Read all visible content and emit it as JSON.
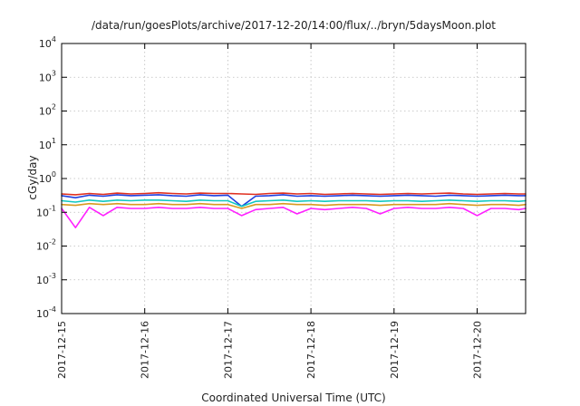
{
  "chart_data": {
    "type": "line",
    "title": "/data/run/goesPlots/archive/2017-12-20/14:00/flux/../bryn/5daysMoon.plot",
    "xlabel": "Coordinated Universal Time (UTC)",
    "ylabel": "cGy/day",
    "yscale": "log",
    "ylim": [
      0.0001,
      10000
    ],
    "xlim": [
      "2017-12-15T00:00",
      "2017-12-20T14:00"
    ],
    "grid": true,
    "legend": "none",
    "y_ticks": [
      {
        "base": "10",
        "exp": "-4",
        "value": 0.0001
      },
      {
        "base": "10",
        "exp": "-3",
        "value": 0.001
      },
      {
        "base": "10",
        "exp": "-2",
        "value": 0.01
      },
      {
        "base": "10",
        "exp": "-1",
        "value": 0.1
      },
      {
        "base": "10",
        "exp": "0",
        "value": 1
      },
      {
        "base": "10",
        "exp": "1",
        "value": 10
      },
      {
        "base": "10",
        "exp": "2",
        "value": 100
      },
      {
        "base": "10",
        "exp": "3",
        "value": 1000
      },
      {
        "base": "10",
        "exp": "4",
        "value": 10000
      }
    ],
    "x_ticks": [
      "2017-12-15",
      "2017-12-16",
      "2017-12-17",
      "2017-12-18",
      "2017-12-19",
      "2017-12-20"
    ],
    "x": [
      "2017-12-15T00:00",
      "2017-12-15T04:00",
      "2017-12-15T08:00",
      "2017-12-15T12:00",
      "2017-12-15T16:00",
      "2017-12-15T20:00",
      "2017-12-16T00:00",
      "2017-12-16T04:00",
      "2017-12-16T08:00",
      "2017-12-16T12:00",
      "2017-12-16T16:00",
      "2017-12-16T20:00",
      "2017-12-17T00:00",
      "2017-12-17T04:00",
      "2017-12-17T08:00",
      "2017-12-17T12:00",
      "2017-12-17T16:00",
      "2017-12-17T20:00",
      "2017-12-18T00:00",
      "2017-12-18T04:00",
      "2017-12-18T08:00",
      "2017-12-18T12:00",
      "2017-12-18T16:00",
      "2017-12-18T20:00",
      "2017-12-19T00:00",
      "2017-12-19T04:00",
      "2017-12-19T08:00",
      "2017-12-19T12:00",
      "2017-12-19T16:00",
      "2017-12-19T20:00",
      "2017-12-20T00:00",
      "2017-12-20T04:00",
      "2017-12-20T08:00",
      "2017-12-20T12:00",
      "2017-12-20T14:00"
    ],
    "series": [
      {
        "color": "#e03020",
        "values": [
          0.35,
          0.33,
          0.36,
          0.34,
          0.37,
          0.35,
          0.36,
          0.38,
          0.36,
          0.35,
          0.37,
          0.36,
          0.36,
          0.35,
          0.34,
          0.36,
          0.37,
          0.35,
          0.36,
          0.34,
          0.35,
          0.36,
          0.35,
          0.34,
          0.35,
          0.36,
          0.35,
          0.36,
          0.37,
          0.35,
          0.34,
          0.35,
          0.36,
          0.35,
          0.35
        ]
      },
      {
        "color": "#2040e0",
        "values": [
          0.31,
          0.27,
          0.32,
          0.3,
          0.33,
          0.31,
          0.32,
          0.33,
          0.31,
          0.3,
          0.33,
          0.31,
          0.32,
          0.15,
          0.3,
          0.31,
          0.33,
          0.3,
          0.31,
          0.3,
          0.31,
          0.32,
          0.31,
          0.3,
          0.31,
          0.32,
          0.31,
          0.3,
          0.32,
          0.31,
          0.3,
          0.31,
          0.32,
          0.31,
          0.31
        ]
      },
      {
        "color": "#10c8c0",
        "values": [
          0.22,
          0.2,
          0.23,
          0.21,
          0.23,
          0.22,
          0.23,
          0.23,
          0.22,
          0.21,
          0.23,
          0.22,
          0.22,
          0.15,
          0.21,
          0.22,
          0.23,
          0.21,
          0.22,
          0.21,
          0.22,
          0.22,
          0.22,
          0.21,
          0.22,
          0.22,
          0.21,
          0.22,
          0.23,
          0.22,
          0.21,
          0.22,
          0.22,
          0.21,
          0.22
        ]
      },
      {
        "color": "#d89a20",
        "values": [
          0.17,
          0.16,
          0.18,
          0.17,
          0.18,
          0.17,
          0.17,
          0.18,
          0.17,
          0.17,
          0.18,
          0.17,
          0.17,
          0.13,
          0.17,
          0.17,
          0.18,
          0.17,
          0.17,
          0.16,
          0.17,
          0.17,
          0.17,
          0.16,
          0.17,
          0.17,
          0.17,
          0.17,
          0.18,
          0.17,
          0.16,
          0.17,
          0.17,
          0.16,
          0.17
        ]
      },
      {
        "color": "#ff20ff",
        "values": [
          0.13,
          0.035,
          0.14,
          0.08,
          0.14,
          0.13,
          0.13,
          0.14,
          0.13,
          0.13,
          0.14,
          0.13,
          0.13,
          0.08,
          0.12,
          0.13,
          0.14,
          0.09,
          0.13,
          0.12,
          0.13,
          0.14,
          0.13,
          0.09,
          0.13,
          0.14,
          0.13,
          0.13,
          0.14,
          0.13,
          0.08,
          0.13,
          0.13,
          0.12,
          0.13
        ]
      }
    ]
  }
}
